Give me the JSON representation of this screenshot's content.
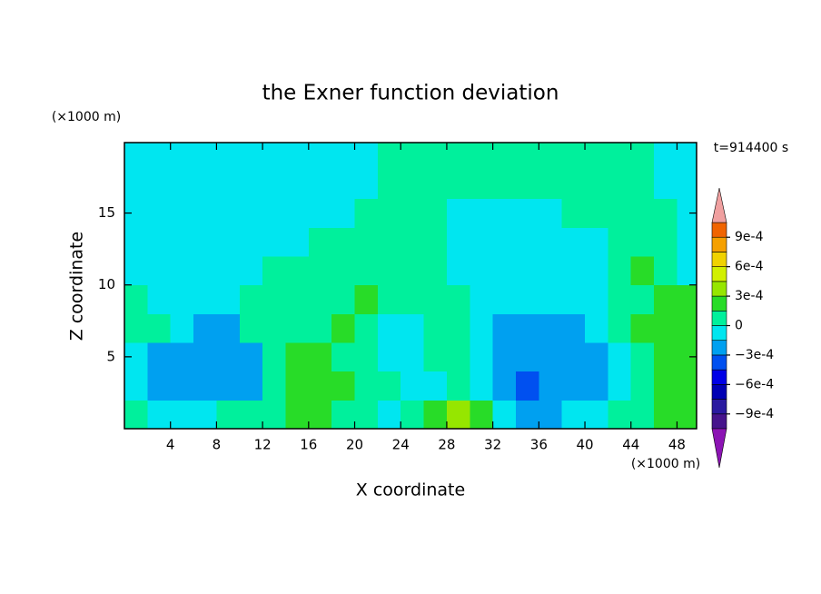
{
  "chart_data": {
    "type": "contourf",
    "title": "the Exner function deviation",
    "x_label": "X coordinate",
    "y_label": "Z coordinate",
    "x_unit": "(×1000 m)",
    "y_unit": "(×1000 m)",
    "annotation": "t=914400 s",
    "xlim": [
      0,
      49.7
    ],
    "ylim": [
      0,
      19.9
    ],
    "xticks": [
      4,
      8,
      12,
      16,
      20,
      24,
      28,
      32,
      36,
      40,
      44,
      48
    ],
    "yticks": [
      5,
      10,
      15
    ],
    "x": [
      0,
      2,
      4,
      6,
      8,
      10,
      12,
      14,
      16,
      18,
      20,
      22,
      24,
      26,
      28,
      30,
      32,
      34,
      36,
      38,
      40,
      42,
      44,
      46,
      48,
      50
    ],
    "y": [
      0,
      2,
      4,
      6,
      8,
      10,
      12,
      14,
      16,
      18,
      20
    ],
    "z": [
      [
        7e-05,
        -7e-05,
        -7e-05,
        -7e-05,
        7e-05,
        7e-05,
        7e-05,
        0.0002,
        0.0002,
        7e-05,
        7e-05,
        -7e-05,
        7e-05,
        0.0002,
        0.00035,
        0.0002,
        -7e-05,
        -0.0002,
        -0.0002,
        -7e-05,
        -7e-05,
        7e-05,
        7e-05,
        0.0002,
        0.0002
      ],
      [
        -7e-05,
        -0.0002,
        -0.0002,
        -0.0002,
        -0.0002,
        -0.0002,
        7e-05,
        0.0002,
        0.0002,
        0.0002,
        7e-05,
        7e-05,
        -7e-05,
        -7e-05,
        7e-05,
        -7e-05,
        -0.0002,
        -0.00035,
        -0.0002,
        -0.0002,
        -0.0002,
        -7e-05,
        7e-05,
        0.0002,
        0.0002
      ],
      [
        -7e-05,
        -0.0002,
        -0.0002,
        -0.0002,
        -0.0002,
        -0.0002,
        7e-05,
        0.0002,
        0.0002,
        7e-05,
        7e-05,
        -7e-05,
        -7e-05,
        7e-05,
        7e-05,
        -7e-05,
        -0.0002,
        -0.0002,
        -0.0002,
        -0.0002,
        -0.0002,
        -7e-05,
        7e-05,
        0.0002,
        0.0002
      ],
      [
        7e-05,
        7e-05,
        -7e-05,
        -0.0002,
        -0.0002,
        7e-05,
        7e-05,
        7e-05,
        7e-05,
        0.0002,
        7e-05,
        -7e-05,
        -7e-05,
        7e-05,
        7e-05,
        -7e-05,
        -0.0002,
        -0.0002,
        -0.0002,
        -0.0002,
        -7e-05,
        7e-05,
        0.0002,
        0.0002,
        0.0002
      ],
      [
        7e-05,
        -7e-05,
        -7e-05,
        -7e-05,
        -7e-05,
        7e-05,
        7e-05,
        7e-05,
        7e-05,
        7e-05,
        0.0002,
        7e-05,
        7e-05,
        7e-05,
        7e-05,
        -7e-05,
        -7e-05,
        -7e-05,
        -7e-05,
        -7e-05,
        -7e-05,
        7e-05,
        7e-05,
        0.0002,
        0.0002
      ],
      [
        -7e-05,
        -7e-05,
        -7e-05,
        -7e-05,
        -7e-05,
        -7e-05,
        7e-05,
        7e-05,
        7e-05,
        7e-05,
        7e-05,
        7e-05,
        7e-05,
        7e-05,
        -7e-05,
        -7e-05,
        -7e-05,
        -7e-05,
        -7e-05,
        -7e-05,
        -7e-05,
        7e-05,
        0.0002,
        7e-05,
        -7e-05
      ],
      [
        -7e-05,
        -7e-05,
        -7e-05,
        -7e-05,
        -7e-05,
        -7e-05,
        -7e-05,
        -7e-05,
        7e-05,
        7e-05,
        7e-05,
        7e-05,
        7e-05,
        7e-05,
        -7e-05,
        -7e-05,
        -7e-05,
        -7e-05,
        -7e-05,
        -7e-05,
        -7e-05,
        7e-05,
        7e-05,
        7e-05,
        -7e-05
      ],
      [
        -7e-05,
        -7e-05,
        -7e-05,
        -7e-05,
        -7e-05,
        -7e-05,
        -7e-05,
        -7e-05,
        -7e-05,
        -7e-05,
        7e-05,
        7e-05,
        7e-05,
        7e-05,
        -7e-05,
        -7e-05,
        -7e-05,
        -7e-05,
        -7e-05,
        7e-05,
        7e-05,
        7e-05,
        7e-05,
        7e-05,
        -7e-05
      ],
      [
        -7e-05,
        -7e-05,
        -7e-05,
        -7e-05,
        -7e-05,
        -7e-05,
        -7e-05,
        -7e-05,
        -7e-05,
        -7e-05,
        -7e-05,
        7e-05,
        7e-05,
        7e-05,
        7e-05,
        7e-05,
        7e-05,
        7e-05,
        7e-05,
        7e-05,
        7e-05,
        7e-05,
        7e-05,
        -7e-05,
        -7e-05
      ],
      [
        -7e-05,
        -7e-05,
        -7e-05,
        -7e-05,
        -7e-05,
        -7e-05,
        -7e-05,
        -7e-05,
        -7e-05,
        -7e-05,
        -7e-05,
        7e-05,
        7e-05,
        7e-05,
        7e-05,
        7e-05,
        7e-05,
        7e-05,
        7e-05,
        7e-05,
        7e-05,
        7e-05,
        7e-05,
        -7e-05,
        -7e-05
      ]
    ],
    "levels": [
      -0.00105,
      -0.0009,
      -0.00075,
      -0.0006,
      -0.00045,
      -0.0003,
      -0.00015,
      0,
      0.00015,
      0.0003,
      0.00045,
      0.0006,
      0.00075,
      0.0009,
      0.00105
    ],
    "colors": [
      "#46148c",
      "#2a1aa0",
      "#0000b4",
      "#0000e6",
      "#0050f0",
      "#00a0f0",
      "#00e6f0",
      "#00f09c",
      "#28dc28",
      "#96e600",
      "#d2f000",
      "#f0d200",
      "#f5a000",
      "#f06400",
      "#f01e1e"
    ],
    "under_color": "#8c14b4",
    "over_color": "#f0a0a0",
    "colorbar_ticks": [
      {
        "value": 0.0009,
        "label": "9e-4"
      },
      {
        "value": 0.0006,
        "label": "6e-4"
      },
      {
        "value": 0.0003,
        "label": "3e-4"
      },
      0,
      {
        "value": -0.0003,
        "label": "−3e-4"
      },
      {
        "value": -0.0006,
        "label": "−6e-4"
      },
      {
        "value": -0.0009,
        "label": "−9e-4"
      }
    ]
  }
}
